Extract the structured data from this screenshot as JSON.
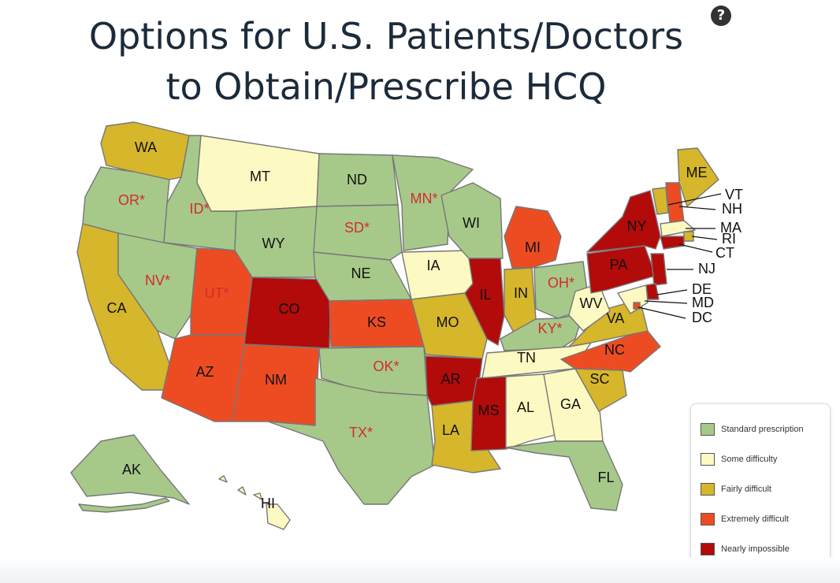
{
  "title": {
    "line1": "Options for U.S. Patients/Doctors",
    "line2": "to Obtain/Prescribe HCQ"
  },
  "help_button": {
    "icon": "question-circle-icon",
    "label": "?"
  },
  "colors": {
    "standard": "#a6c98a",
    "some": "#fdf9c2",
    "fairly": "#d6b62b",
    "extreme": "#ed4c23",
    "impossible": "#b30a0a",
    "asterisk_label": "#d42b2b"
  },
  "legend": {
    "items": [
      {
        "key": "standard",
        "label": "Standard prescription"
      },
      {
        "key": "some",
        "label": "Some difficulty"
      },
      {
        "key": "fairly",
        "label": "Fairly difficult"
      },
      {
        "key": "extreme",
        "label": "Extremely difficult"
      },
      {
        "key": "impossible",
        "label": "Nearly impossible"
      }
    ]
  },
  "states": [
    {
      "label": "WA",
      "category": "fairly"
    },
    {
      "label": "OR*",
      "category": "standard"
    },
    {
      "label": "CA",
      "category": "fairly"
    },
    {
      "label": "ID*",
      "category": "standard"
    },
    {
      "label": "NV*",
      "category": "standard"
    },
    {
      "label": "MT",
      "category": "some"
    },
    {
      "label": "WY",
      "category": "standard"
    },
    {
      "label": "UT*",
      "category": "extreme"
    },
    {
      "label": "AZ",
      "category": "extreme"
    },
    {
      "label": "CO",
      "category": "impossible"
    },
    {
      "label": "NM",
      "category": "extreme"
    },
    {
      "label": "ND",
      "category": "standard"
    },
    {
      "label": "SD*",
      "category": "standard"
    },
    {
      "label": "NE",
      "category": "standard"
    },
    {
      "label": "KS",
      "category": "extreme"
    },
    {
      "label": "OK*",
      "category": "standard"
    },
    {
      "label": "TX*",
      "category": "standard"
    },
    {
      "label": "MN*",
      "category": "standard"
    },
    {
      "label": "IA",
      "category": "some"
    },
    {
      "label": "MO",
      "category": "fairly"
    },
    {
      "label": "AR",
      "category": "impossible"
    },
    {
      "label": "LA",
      "category": "fairly"
    },
    {
      "label": "WI",
      "category": "standard"
    },
    {
      "label": "IL",
      "category": "impossible"
    },
    {
      "label": "MI",
      "category": "extreme"
    },
    {
      "label": "IN",
      "category": "fairly"
    },
    {
      "label": "OH*",
      "category": "standard"
    },
    {
      "label": "KY*",
      "category": "standard"
    },
    {
      "label": "TN",
      "category": "some"
    },
    {
      "label": "MS",
      "category": "impossible"
    },
    {
      "label": "AL",
      "category": "some"
    },
    {
      "label": "GA",
      "category": "some"
    },
    {
      "label": "FL",
      "category": "standard"
    },
    {
      "label": "SC",
      "category": "fairly"
    },
    {
      "label": "NC",
      "category": "extreme"
    },
    {
      "label": "VA",
      "category": "fairly"
    },
    {
      "label": "WV",
      "category": "some"
    },
    {
      "label": "PA",
      "category": "impossible"
    },
    {
      "label": "NY",
      "category": "impossible"
    },
    {
      "label": "VT",
      "category": "fairly"
    },
    {
      "label": "NH",
      "category": "extreme"
    },
    {
      "label": "ME",
      "category": "fairly"
    },
    {
      "label": "MA",
      "category": "some"
    },
    {
      "label": "RI",
      "category": "fairly"
    },
    {
      "label": "CT",
      "category": "impossible"
    },
    {
      "label": "NJ",
      "category": "impossible"
    },
    {
      "label": "DE",
      "category": "impossible"
    },
    {
      "label": "MD",
      "category": "some"
    },
    {
      "label": "DC",
      "category": "extreme"
    },
    {
      "label": "AK",
      "category": "standard"
    },
    {
      "label": "HI",
      "category": "some"
    }
  ]
}
